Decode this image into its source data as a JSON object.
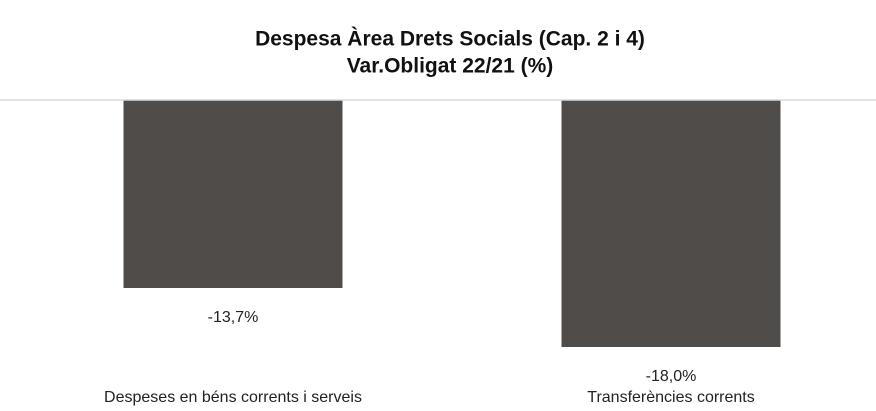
{
  "chart_data": {
    "type": "bar",
    "title": "Despesa Àrea Drets Socials (Cap. 2 i 4)",
    "subtitle": "Var.Obligat 22/21 (%)",
    "categories": [
      "Despeses en béns corrents i serveis",
      "Transferències corrents"
    ],
    "values": [
      -13.7,
      -18.0
    ],
    "value_labels": [
      "-13,7%",
      "-18,0%"
    ],
    "color": "#504c4a",
    "ylim": [
      -18,
      0
    ]
  }
}
